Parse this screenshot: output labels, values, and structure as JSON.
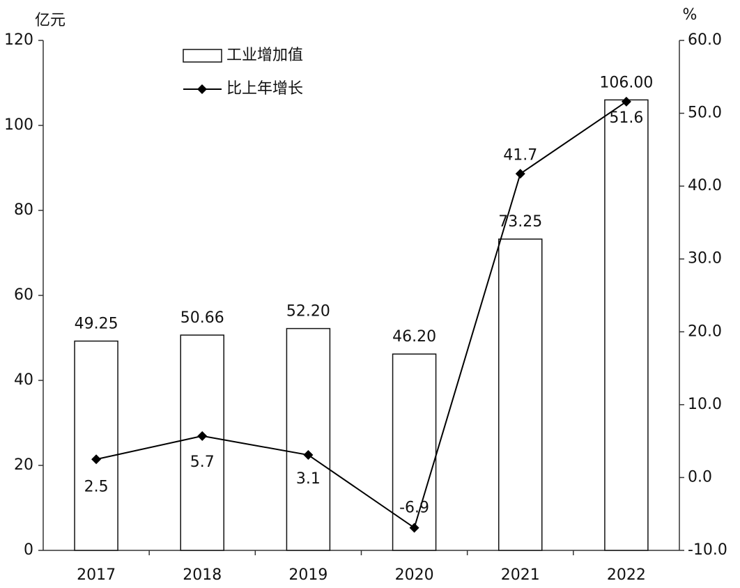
{
  "chart_data": {
    "type": "bar",
    "y_label": "亿元",
    "y2_label": "%",
    "categories": [
      "2017",
      "2018",
      "2019",
      "2020",
      "2021",
      "2022"
    ],
    "series": [
      {
        "name": "工业增加值",
        "type": "bar",
        "color": "#ffffff",
        "values": [
          49.25,
          50.66,
          52.2,
          46.2,
          73.25,
          106.0
        ],
        "value_labels": [
          "49.25",
          "50.66",
          "52.20",
          "46.20",
          "73.25",
          "106.00"
        ]
      },
      {
        "name": "比上年增长",
        "type": "line",
        "axis": "y2",
        "color": "#000000",
        "values": [
          2.5,
          5.7,
          3.1,
          -6.9,
          41.7,
          51.6
        ]
      }
    ],
    "ylim": [
      0,
      120
    ],
    "yticks": [
      0,
      20,
      40,
      60,
      80,
      100,
      120
    ],
    "y2lim": [
      -10,
      60
    ],
    "y2ticks": [
      {
        "value": -10,
        "label": "-10.0"
      },
      {
        "value": 0,
        "label": "0.0"
      },
      {
        "value": 10,
        "label": "10.0"
      },
      {
        "value": 20,
        "label": "20.0"
      },
      {
        "value": 30,
        "label": "30.0"
      },
      {
        "value": 40,
        "label": "40.0"
      },
      {
        "value": 50,
        "label": "50.0"
      },
      {
        "value": 60,
        "label": "60.0"
      }
    ],
    "grid": false,
    "legend": "top-left"
  }
}
